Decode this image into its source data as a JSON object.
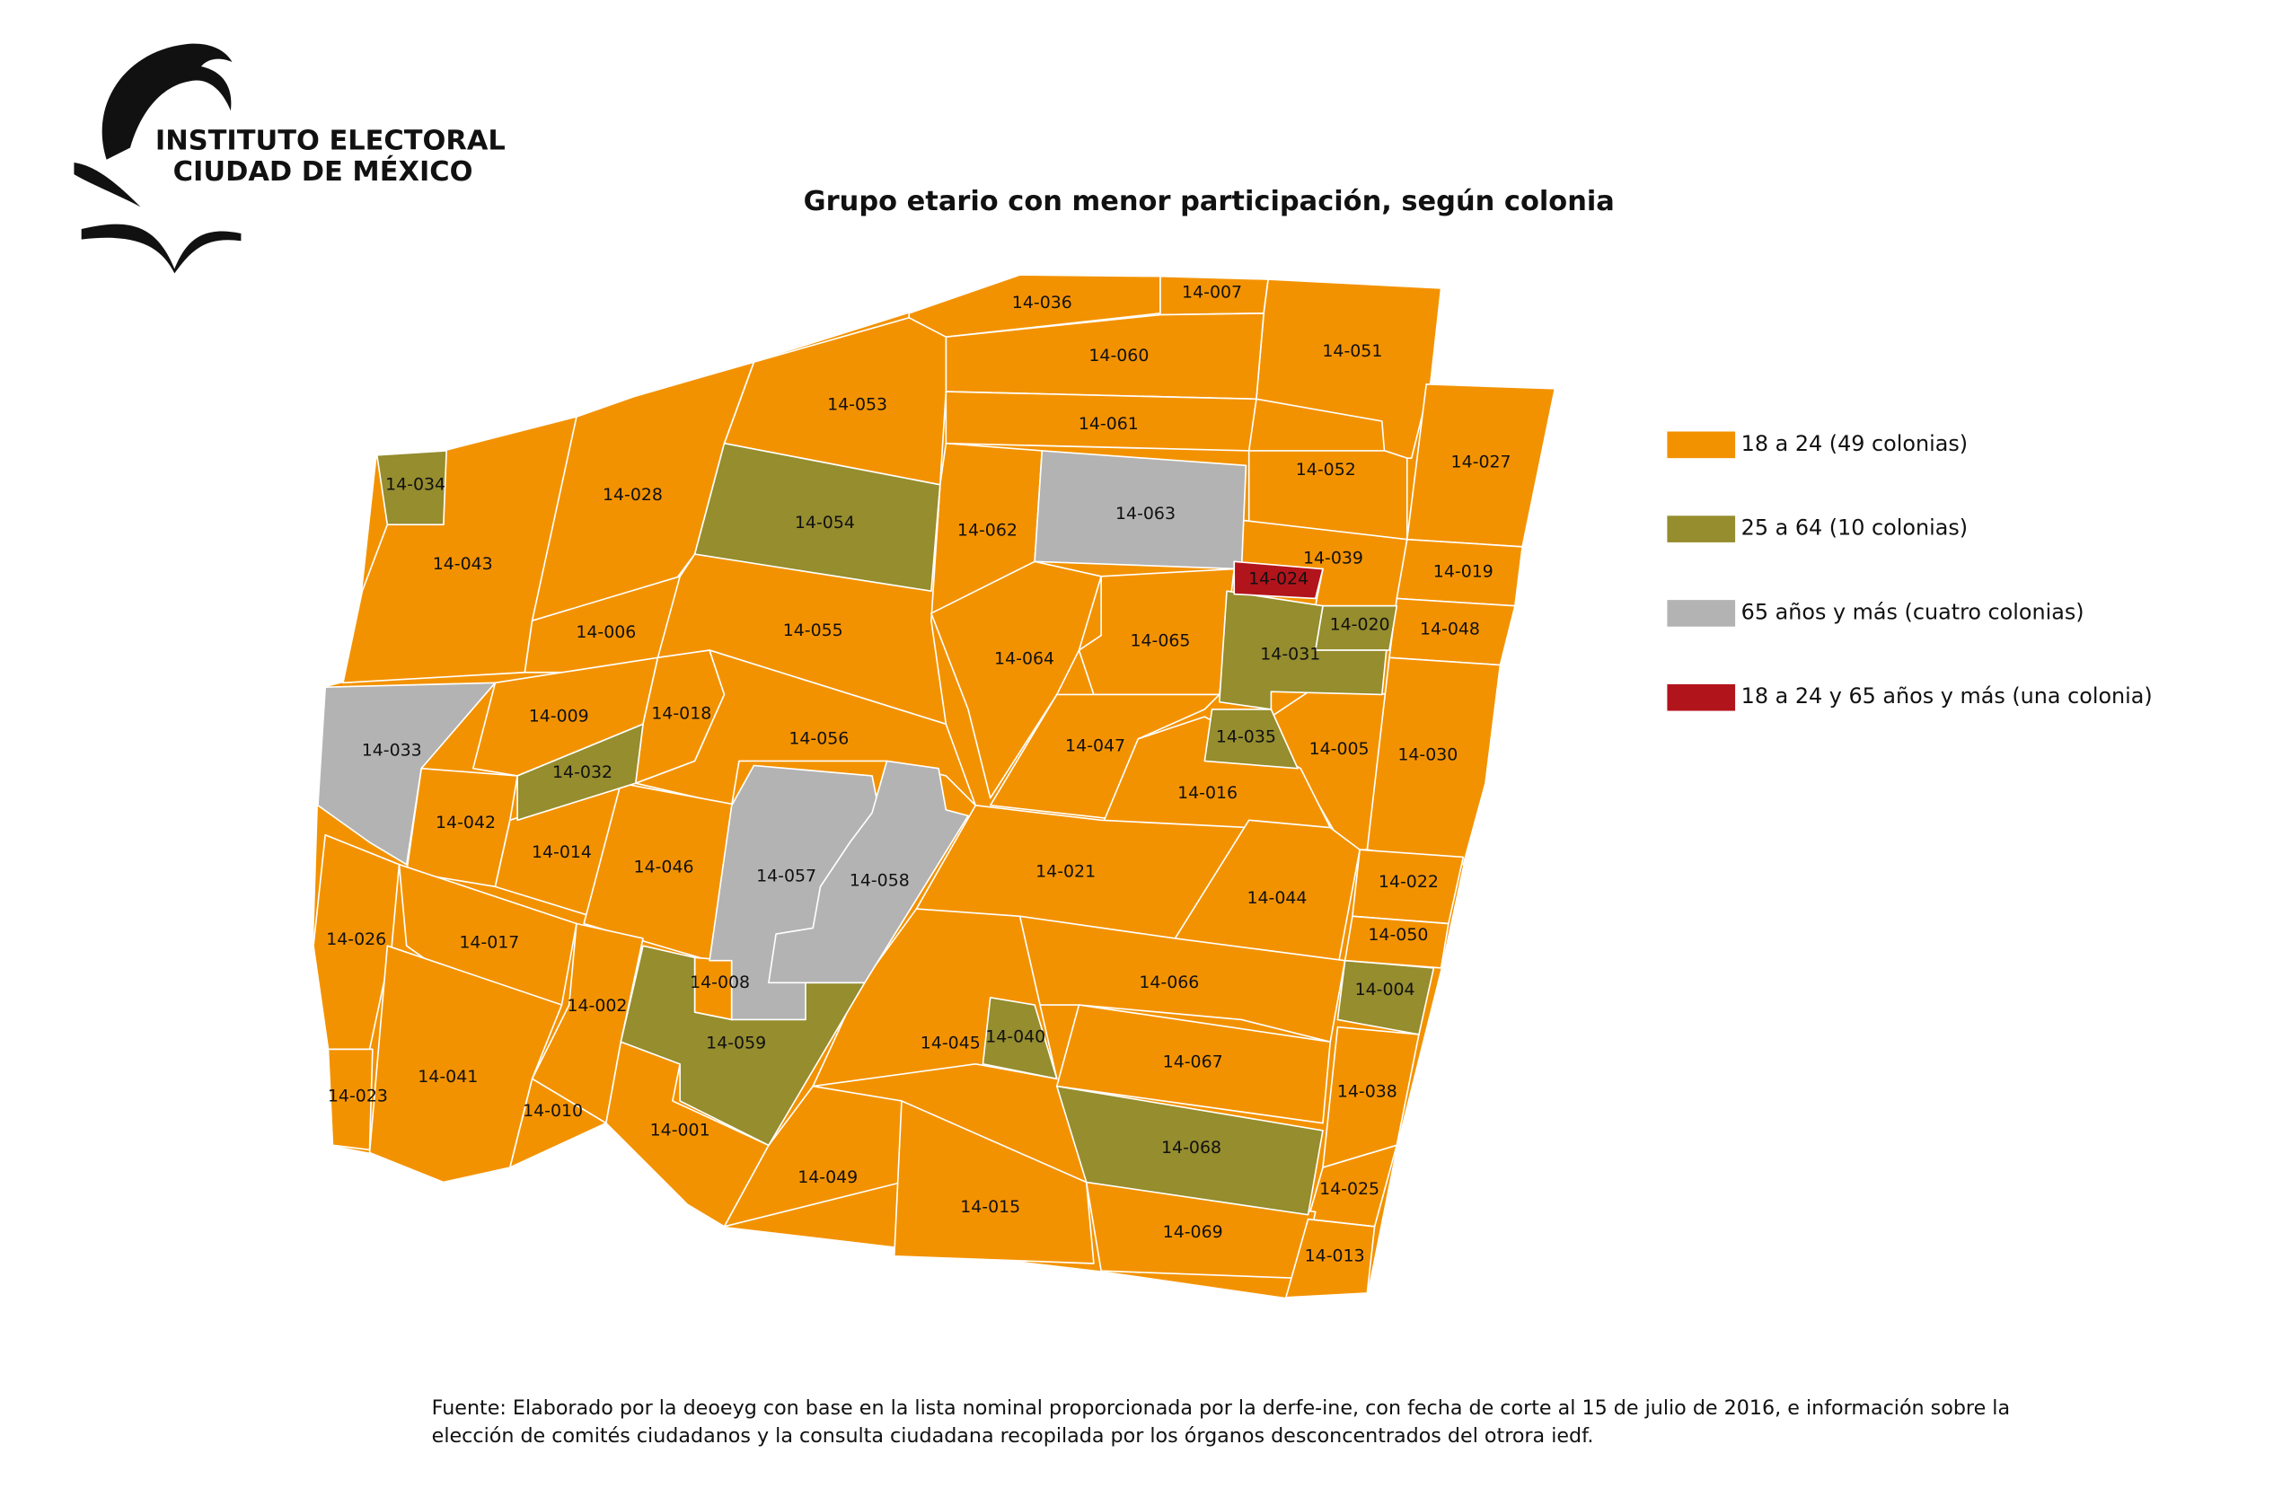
{
  "header": {
    "logo_line1": "INSTITUTO ELECTORAL",
    "logo_line2": "CIUDAD DE MÉXICO"
  },
  "title": "Grupo etario con menor participación, según colonia",
  "legend": [
    {
      "label": "18 a 24 (49 colonias)",
      "color": "#f39200"
    },
    {
      "label": "25 a 64 (10 colonias)",
      "color": "#958d2e"
    },
    {
      "label": "65 años y más (cuatro colonias)",
      "color": "#b3b3b3"
    },
    {
      "label": "18 a 24 y 65 años y más (una colonia)",
      "color": "#b2141c"
    }
  ],
  "regions": [
    {
      "id": "14-036",
      "group": 0
    },
    {
      "id": "14-007",
      "group": 0
    },
    {
      "id": "14-051",
      "group": 0
    },
    {
      "id": "14-060",
      "group": 0
    },
    {
      "id": "14-053",
      "group": 0
    },
    {
      "id": "14-061",
      "group": 0
    },
    {
      "id": "14-027",
      "group": 0
    },
    {
      "id": "14-052",
      "group": 0
    },
    {
      "id": "14-028",
      "group": 0
    },
    {
      "id": "14-043",
      "group": 0
    },
    {
      "id": "14-062",
      "group": 0
    },
    {
      "id": "14-039",
      "group": 0
    },
    {
      "id": "14-019",
      "group": 0
    },
    {
      "id": "14-006",
      "group": 0
    },
    {
      "id": "14-055",
      "group": 0
    },
    {
      "id": "14-048",
      "group": 0
    },
    {
      "id": "14-065",
      "group": 0
    },
    {
      "id": "14-064",
      "group": 0
    },
    {
      "id": "14-009",
      "group": 0
    },
    {
      "id": "14-018",
      "group": 0
    },
    {
      "id": "14-056",
      "group": 0
    },
    {
      "id": "14-047",
      "group": 0
    },
    {
      "id": "14-005",
      "group": 0
    },
    {
      "id": "14-030",
      "group": 0
    },
    {
      "id": "14-016",
      "group": 0
    },
    {
      "id": "14-042",
      "group": 0
    },
    {
      "id": "14-014",
      "group": 0
    },
    {
      "id": "14-046",
      "group": 0
    },
    {
      "id": "14-021",
      "group": 0
    },
    {
      "id": "14-044",
      "group": 0
    },
    {
      "id": "14-022",
      "group": 0
    },
    {
      "id": "14-026",
      "group": 0
    },
    {
      "id": "14-017",
      "group": 0
    },
    {
      "id": "14-050",
      "group": 0
    },
    {
      "id": "14-008",
      "group": 0
    },
    {
      "id": "14-066",
      "group": 0
    },
    {
      "id": "14-002",
      "group": 0
    },
    {
      "id": "14-045",
      "group": 0
    },
    {
      "id": "14-067",
      "group": 0
    },
    {
      "id": "14-041",
      "group": 0
    },
    {
      "id": "14-023",
      "group": 0
    },
    {
      "id": "14-038",
      "group": 0
    },
    {
      "id": "14-010",
      "group": 0
    },
    {
      "id": "14-001",
      "group": 0
    },
    {
      "id": "14-049",
      "group": 0
    },
    {
      "id": "14-025",
      "group": 0
    },
    {
      "id": "14-015",
      "group": 0
    },
    {
      "id": "14-069",
      "group": 0
    },
    {
      "id": "14-013",
      "group": 0
    },
    {
      "id": "14-034",
      "group": 1
    },
    {
      "id": "14-054",
      "group": 1
    },
    {
      "id": "14-020",
      "group": 1
    },
    {
      "id": "14-031",
      "group": 1
    },
    {
      "id": "14-035",
      "group": 1
    },
    {
      "id": "14-032",
      "group": 1
    },
    {
      "id": "14-059",
      "group": 1
    },
    {
      "id": "14-040",
      "group": 1
    },
    {
      "id": "14-068",
      "group": 1
    },
    {
      "id": "14-004",
      "group": 1
    },
    {
      "id": "14-033",
      "group": 2
    },
    {
      "id": "14-057",
      "group": 2
    },
    {
      "id": "14-058",
      "group": 2
    },
    {
      "id": "14-063",
      "group": 2
    },
    {
      "id": "14-024",
      "group": 3
    }
  ],
  "footnote": [
    "Fuente: Elaborado por la deoeyg con base en la lista nominal proporcionada por la derfe-ine, con fecha de corte al 15 de julio de 2016, e información sobre la",
    "elección de comités ciudadanos y la consulta ciudadana recopilada por los órganos desconcentrados del otrora iedf."
  ]
}
